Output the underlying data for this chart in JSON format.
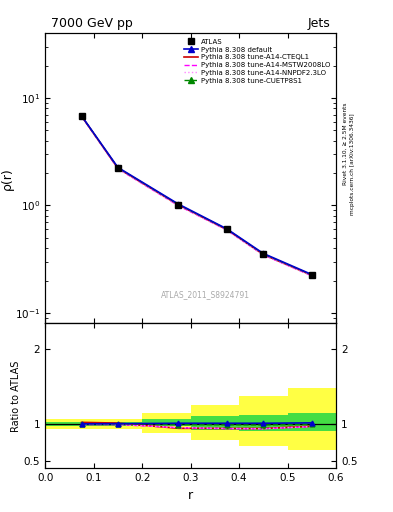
{
  "title_left": "7000 GeV pp",
  "title_right": "Jets",
  "ylabel_main": "ρ(r)",
  "ylabel_ratio": "Ratio to ATLAS",
  "xlabel": "r",
  "watermark": "ATLAS_2011_S8924791",
  "right_label_top": "Rivet 3.1.10, ≥ 2.5M events",
  "right_label_bot": "mcplots.cern.ch [arXiv:1306.3436]",
  "xlim": [
    0.0,
    0.6
  ],
  "ylim_main": [
    0.08,
    40
  ],
  "ylim_ratio": [
    0.4,
    2.35
  ],
  "ratio_yticks": [
    0.5,
    1.0,
    2.0
  ],
  "x_data": [
    0.075,
    0.15,
    0.275,
    0.375,
    0.45,
    0.55
  ],
  "atlas_y": [
    6.8,
    2.25,
    1.02,
    0.6,
    0.355,
    0.225
  ],
  "atlas_yerr": [
    0.1,
    0.04,
    0.02,
    0.01,
    0.008,
    0.005
  ],
  "pythia_default_y": [
    6.82,
    2.26,
    1.03,
    0.605,
    0.358,
    0.228
  ],
  "pythia_cteql1_y": [
    6.78,
    2.22,
    1.01,
    0.595,
    0.35,
    0.224
  ],
  "pythia_mstw_y": [
    6.75,
    2.2,
    0.995,
    0.59,
    0.347,
    0.222
  ],
  "pythia_nnpdf_y": [
    6.76,
    2.21,
    0.998,
    0.592,
    0.348,
    0.223
  ],
  "pythia_cuetp_y": [
    6.8,
    2.24,
    1.018,
    0.6,
    0.354,
    0.226
  ],
  "ratio_default_y": [
    1.0,
    1.002,
    1.008,
    1.008,
    1.008,
    1.013
  ],
  "ratio_cteql1_y": [
    1.02,
    1.01,
    0.94,
    0.938,
    0.938,
    0.968
  ],
  "ratio_mstw_y": [
    0.99,
    0.99,
    0.948,
    0.936,
    0.934,
    0.962
  ],
  "ratio_nnpdf_y": [
    0.994,
    0.992,
    0.95,
    0.938,
    0.935,
    0.964
  ],
  "ratio_cuetp_y": [
    1.0,
    1.0,
    0.99,
    0.987,
    0.985,
    0.993
  ],
  "band_edges": [
    0.0,
    0.1,
    0.2,
    0.3,
    0.4,
    0.5,
    0.6
  ],
  "band_green_lo": [
    0.97,
    0.97,
    0.97,
    0.92,
    0.9,
    0.9
  ],
  "band_green_hi": [
    1.03,
    1.03,
    1.07,
    1.1,
    1.12,
    1.15
  ],
  "band_yellow_lo": [
    0.93,
    0.93,
    0.88,
    0.78,
    0.7,
    0.65
  ],
  "band_yellow_hi": [
    1.07,
    1.07,
    1.15,
    1.25,
    1.38,
    1.48
  ],
  "color_atlas": "#000000",
  "color_default": "#0000cc",
  "color_cteql1": "#cc0000",
  "color_mstw": "#ff00ff",
  "color_nnpdf": "#ff88ff",
  "color_cuetp": "#008800",
  "color_green_band": "#44dd44",
  "color_yellow_band": "#ffff44"
}
